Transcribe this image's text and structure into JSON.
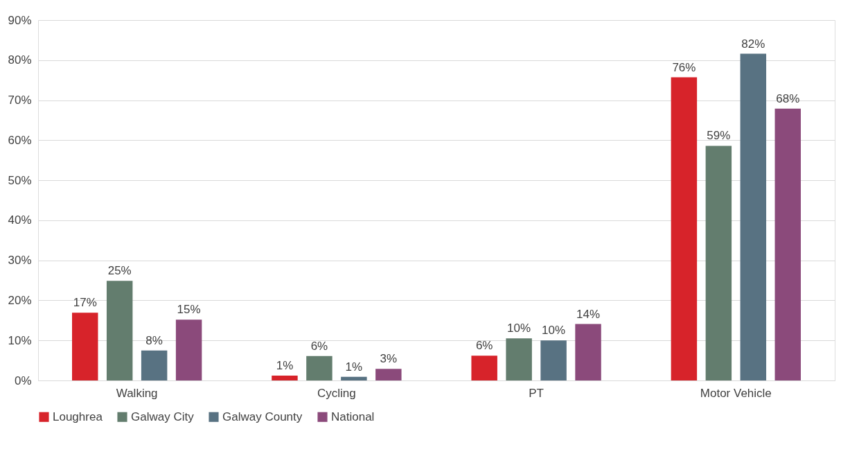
{
  "chart_data": {
    "type": "bar",
    "categories": [
      "Walking",
      "Cycling",
      "PT",
      "Motor Vehicle"
    ],
    "series": [
      {
        "name": "Loughrea",
        "color": "#d7232a",
        "values": [
          16.9,
          1.2,
          6.2,
          75.7
        ],
        "value_labels": [
          "17%",
          "1%",
          "6%",
          "76%"
        ]
      },
      {
        "name": "Galway City",
        "color": "#637d6e",
        "values": [
          24.9,
          6.1,
          10.5,
          58.6
        ],
        "value_labels": [
          "25%",
          "6%",
          "10%",
          "59%"
        ]
      },
      {
        "name": "Galway County",
        "color": "#587282",
        "values": [
          7.5,
          0.9,
          10.0,
          81.6
        ],
        "value_labels": [
          "8%",
          "1%",
          "10%",
          "82%"
        ]
      },
      {
        "name": "National",
        "color": "#8b4a7b",
        "values": [
          15.2,
          2.9,
          14.1,
          67.9
        ],
        "value_labels": [
          "15%",
          "3%",
          "14%",
          "68%"
        ]
      }
    ],
    "ylim": [
      0,
      90
    ],
    "yticks": [
      {
        "value": 0,
        "label": "0%"
      },
      {
        "value": 10,
        "label": "10%"
      },
      {
        "value": 20,
        "label": "20%"
      },
      {
        "value": 30,
        "label": "30%"
      },
      {
        "value": 40,
        "label": "40%"
      },
      {
        "value": 50,
        "label": "50%"
      },
      {
        "value": 60,
        "label": "60%"
      },
      {
        "value": 70,
        "label": "70%"
      },
      {
        "value": 80,
        "label": "80%"
      },
      {
        "value": 90,
        "label": "90%"
      }
    ],
    "grid": "y",
    "legend": "bottom"
  }
}
